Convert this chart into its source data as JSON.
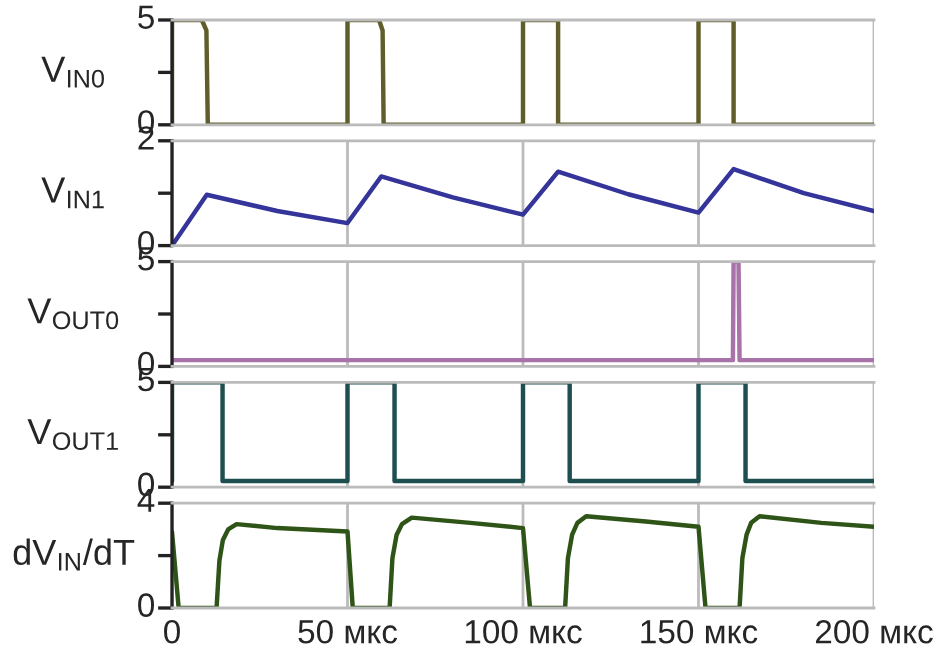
{
  "chart_data": [
    {
      "type": "line",
      "ylabel": "V$_{IN0}$",
      "xlim": [
        0,
        200
      ],
      "xticks": [
        0,
        50,
        100,
        150,
        200
      ],
      "ylim": [
        0,
        5
      ],
      "yticks": [
        0,
        {
          "value": 2.5,
          "label": null
        },
        5
      ],
      "grid": "x",
      "tick_labels": "y",
      "series": [
        {
          "color": "#5f5e2a",
          "x": [
            0,
            0,
            8.5,
            9.8,
            10.2,
            50,
            50,
            59,
            60,
            60.3,
            100,
            100,
            110,
            110,
            150,
            150,
            160,
            160,
            200
          ],
          "values": [
            0,
            5,
            5,
            4.5,
            0,
            0,
            5,
            5,
            4.5,
            0,
            0,
            5,
            5,
            0,
            0,
            5,
            5,
            0,
            0
          ]
        }
      ]
    },
    {
      "type": "line",
      "ylabel": "V$_{IN1}$",
      "xlim": [
        0,
        200
      ],
      "xticks": [
        0,
        50,
        100,
        150,
        200
      ],
      "ylim": [
        0,
        2
      ],
      "yticks": [
        0,
        {
          "value": 1,
          "label": null
        },
        2
      ],
      "grid": "x",
      "tick_labels": "y",
      "series": [
        {
          "color": "#34349a",
          "x": [
            0,
            9.9,
            30,
            50,
            59.6,
            80,
            100,
            110,
            130,
            150,
            160,
            180,
            200
          ],
          "values": [
            0,
            0.97,
            0.66,
            0.43,
            1.32,
            0.92,
            0.59,
            1.41,
            0.98,
            0.63,
            1.46,
            1.0,
            0.66
          ]
        }
      ]
    },
    {
      "type": "line",
      "ylabel": "V$_{OUT0}$",
      "xlim": [
        0,
        200
      ],
      "xticks": [
        0,
        50,
        100,
        150,
        200
      ],
      "ylim": [
        0,
        5
      ],
      "yticks": [
        0,
        {
          "value": 2.5,
          "label": null
        },
        5
      ],
      "grid": "x",
      "tick_labels": "y",
      "series": [
        {
          "color": "#a873a8",
          "x": [
            0,
            159.8,
            160,
            161.4,
            161.7,
            200
          ],
          "values": [
            0.3,
            0.3,
            5,
            5,
            0.3,
            0.3
          ]
        }
      ]
    },
    {
      "type": "line",
      "ylabel": "V$_{OUT1}$",
      "xlim": [
        0,
        200
      ],
      "xticks": [
        0,
        50,
        100,
        150,
        200
      ],
      "ylim": [
        0,
        5
      ],
      "yticks": [
        0,
        {
          "value": 2.5,
          "label": null
        },
        5
      ],
      "grid": "x",
      "tick_labels": "y",
      "series": [
        {
          "color": "#1e4f50",
          "x": [
            0,
            0,
            14.4,
            14.4,
            50,
            50,
            63.4,
            63.4,
            100,
            100,
            113.3,
            113.3,
            150,
            150,
            163.4,
            163.4,
            200
          ],
          "values": [
            0.3,
            5,
            5,
            0.3,
            0.3,
            5,
            5,
            0.3,
            0.3,
            5,
            5,
            0.3,
            0.3,
            5,
            5,
            0.3,
            0.3
          ]
        }
      ]
    },
    {
      "type": "line",
      "ylabel": "dV$_{IN}$/dT",
      "xlim": [
        0,
        200
      ],
      "xticks": [
        0,
        {
          "value": 50,
          "label": "50 мкс"
        },
        {
          "value": 100,
          "label": "100 мкс"
        },
        {
          "value": 150,
          "label": "150 мкс"
        },
        {
          "value": 200,
          "label": "200 мкс"
        }
      ],
      "ylim": [
        0,
        4
      ],
      "yticks": [
        0,
        {
          "value": 2,
          "label": null
        },
        4
      ],
      "grid": "x",
      "series": [
        {
          "color": "#2f5417",
          "x": [
            0,
            1.9,
            12.7,
            13.5,
            14.5,
            16,
            18.4,
            30,
            50,
            51.5,
            62,
            62.8,
            64,
            65.5,
            68.3,
            85,
            100,
            102,
            112,
            112.8,
            114,
            115.5,
            118,
            135,
            150,
            152,
            161.7,
            162.5,
            163.7,
            165,
            167.4,
            185,
            200
          ],
          "values": [
            2.9,
            0,
            0,
            1.8,
            2.6,
            3.0,
            3.2,
            3.05,
            2.92,
            0,
            0,
            1.9,
            2.8,
            3.2,
            3.45,
            3.25,
            3.05,
            0,
            0,
            1.9,
            2.8,
            3.25,
            3.5,
            3.3,
            3.1,
            0,
            0,
            1.9,
            2.8,
            3.25,
            3.5,
            3.25,
            3.1
          ]
        }
      ]
    }
  ]
}
